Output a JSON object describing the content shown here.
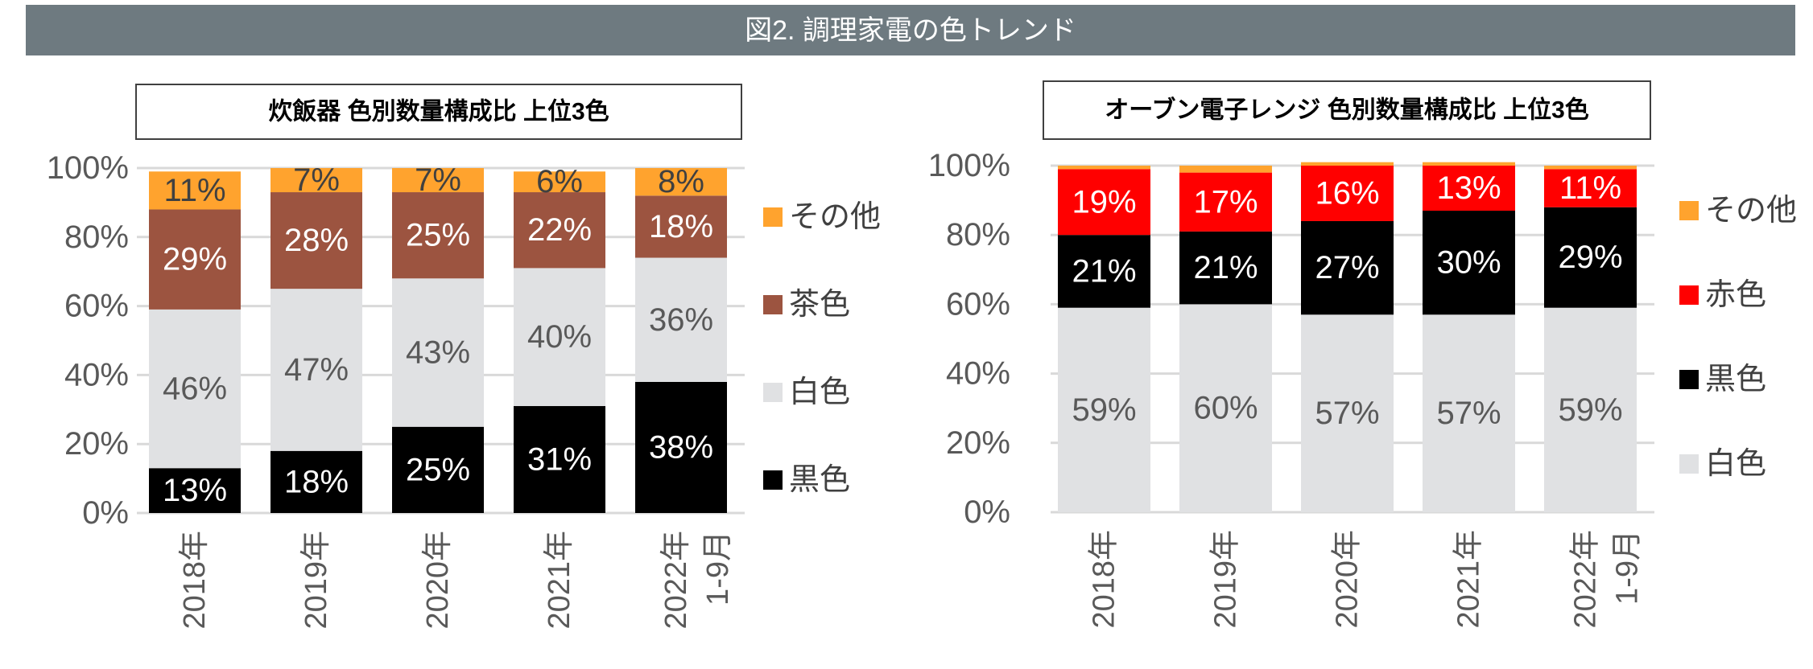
{
  "header": {
    "title": "図2. 調理家電の色トレンド"
  },
  "colors": {
    "header_bg": "#6e7a80",
    "orange": "#ffa32e",
    "brown": "#9c5440",
    "light_gray": "#e0e1e3",
    "black": "#000000",
    "red": "#ff0000"
  },
  "chart_data": [
    {
      "type": "bar",
      "stacked": true,
      "title": "炊飯器 色別数量構成比 上位3色",
      "categories": [
        "2018年",
        "2019年",
        "2020年",
        "2021年",
        "2022年 1-9月"
      ],
      "yticks": [
        "0%",
        "20%",
        "40%",
        "60%",
        "80%",
        "100%"
      ],
      "ylim": [
        0,
        100
      ],
      "grid": true,
      "legend_position": "right",
      "series": [
        {
          "name": "黒色",
          "color": "#000000",
          "label_color": "#ffffff",
          "values": [
            13,
            18,
            25,
            31,
            38
          ],
          "labels": [
            "13%",
            "18%",
            "25%",
            "31%",
            "38%"
          ]
        },
        {
          "name": "白色",
          "color": "#e0e1e3",
          "label_color": "#595959",
          "values": [
            46,
            47,
            43,
            40,
            36
          ],
          "labels": [
            "46%",
            "47%",
            "43%",
            "40%",
            "36%"
          ]
        },
        {
          "name": "茶色",
          "color": "#9c5440",
          "label_color": "#ffffff",
          "values": [
            29,
            28,
            25,
            22,
            18
          ],
          "labels": [
            "29%",
            "28%",
            "25%",
            "22%",
            "18%"
          ]
        },
        {
          "name": "その他",
          "color": "#ffa32e",
          "label_color": "#404040",
          "values": [
            11,
            7,
            7,
            6,
            8
          ],
          "labels": [
            "11%",
            "7%",
            "7%",
            "6%",
            "8%"
          ]
        }
      ]
    },
    {
      "type": "bar",
      "stacked": true,
      "title": "オーブン電子レンジ 色別数量構成比 上位3色",
      "categories": [
        "2018年",
        "2019年",
        "2020年",
        "2021年",
        "2022年 1-9月"
      ],
      "yticks": [
        "0%",
        "20%",
        "40%",
        "60%",
        "80%",
        "100%"
      ],
      "ylim": [
        0,
        100
      ],
      "grid": true,
      "legend_position": "right",
      "series": [
        {
          "name": "白色",
          "color": "#e0e1e3",
          "label_color": "#595959",
          "values": [
            59,
            60,
            57,
            57,
            59
          ],
          "labels": [
            "59%",
            "60%",
            "57%",
            "57%",
            "59%"
          ]
        },
        {
          "name": "黒色",
          "color": "#000000",
          "label_color": "#ffffff",
          "values": [
            21,
            21,
            27,
            30,
            29
          ],
          "labels": [
            "21%",
            "21%",
            "27%",
            "30%",
            "29%"
          ]
        },
        {
          "name": "赤色",
          "color": "#ff0000",
          "label_color": "#ffffff",
          "values": [
            19,
            17,
            16,
            13,
            11
          ],
          "labels": [
            "19%",
            "17%",
            "16%",
            "13%",
            "11%"
          ]
        },
        {
          "name": "その他",
          "color": "#ffa32e",
          "label_color": "#404040",
          "values": [
            1,
            2,
            1,
            1,
            1
          ],
          "labels": [
            "",
            "",
            "",
            "",
            ""
          ]
        }
      ]
    }
  ]
}
